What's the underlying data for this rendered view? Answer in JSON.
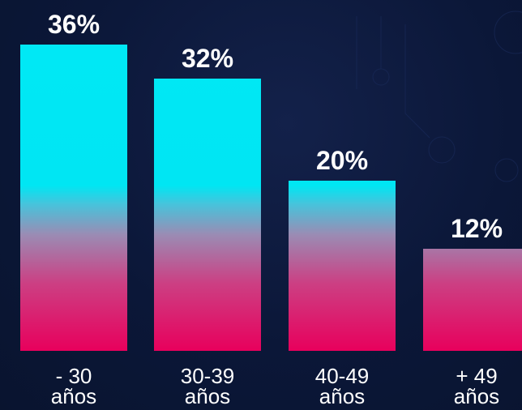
{
  "chart_data": {
    "type": "bar",
    "categories": [
      [
        "- 30",
        "años"
      ],
      [
        "30-39",
        "años"
      ],
      [
        "40-49",
        "años"
      ],
      [
        "+ 49",
        "años"
      ]
    ],
    "values": [
      36,
      32,
      20,
      12
    ],
    "value_labels": [
      "36%",
      "32%",
      "20%",
      "12%"
    ],
    "unit": "%",
    "ylim": [
      0,
      36
    ],
    "grid": false,
    "legend": "none"
  },
  "colors": {
    "background": "#0b1738",
    "bar_top": "#00e8f5",
    "bar_mid": "#00d6ec",
    "bar_pink": "#c23a82",
    "bar_bottom": "#e8005c",
    "text": "#ffffff"
  }
}
